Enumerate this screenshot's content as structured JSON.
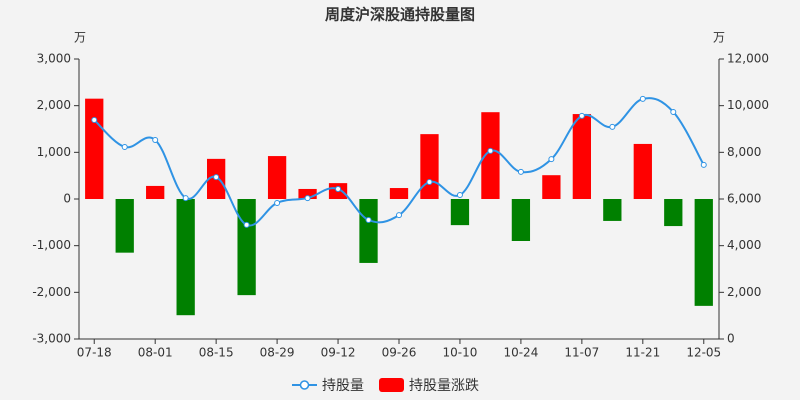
{
  "chart_data": {
    "type": "bar-line",
    "title": "周度沪深股通持股量图",
    "y_unit": "万",
    "y2_unit": "万",
    "categories": [
      "07-18",
      null,
      "08-01",
      null,
      "08-15",
      null,
      "08-29",
      null,
      "09-12",
      null,
      "09-26",
      null,
      "10-10",
      null,
      "10-24",
      null,
      "11-07",
      null,
      "11-21",
      null,
      "12-05"
    ],
    "series": [
      {
        "name": "持股量",
        "type": "line",
        "axis": "y2",
        "color": "#2f93e4",
        "values": [
          9385,
          8230,
          8530,
          6040,
          6940,
          4890,
          5830,
          6040,
          6430,
          5100,
          5310,
          6730,
          6170,
          8060,
          7160,
          7710,
          9560,
          9090,
          10290,
          9730,
          7460
        ]
      },
      {
        "name": "持股量涨跌",
        "type": "bar",
        "color": "#ff0000",
        "negative_color": "#008000",
        "values": [
          2150,
          -1150,
          280,
          -2490,
          860,
          -2060,
          920,
          215,
          340,
          -1370,
          235,
          1390,
          -560,
          1860,
          -900,
          510,
          1820,
          -470,
          1180,
          -580,
          -2290
        ]
      }
    ],
    "ylim": [
      -3000,
      3000
    ],
    "yticks": [
      {
        "value": -3000,
        "label": "-3,000"
      },
      {
        "value": -2000,
        "label": "-2,000"
      },
      {
        "value": -1000,
        "label": "-1,000"
      },
      0,
      {
        "value": 1000,
        "label": "1,000"
      },
      {
        "value": 2000,
        "label": "2,000"
      },
      {
        "value": 3000,
        "label": "3,000"
      }
    ],
    "y2lim": [
      0,
      12000
    ],
    "y2ticks": [
      0,
      {
        "value": 2000,
        "label": "2,000"
      },
      {
        "value": 4000,
        "label": "4,000"
      },
      {
        "value": 6000,
        "label": "6,000"
      },
      {
        "value": 8000,
        "label": "8,000"
      },
      {
        "value": 10000,
        "label": "10,000"
      },
      {
        "value": 12000,
        "label": "12,000"
      }
    ],
    "grid": false
  }
}
